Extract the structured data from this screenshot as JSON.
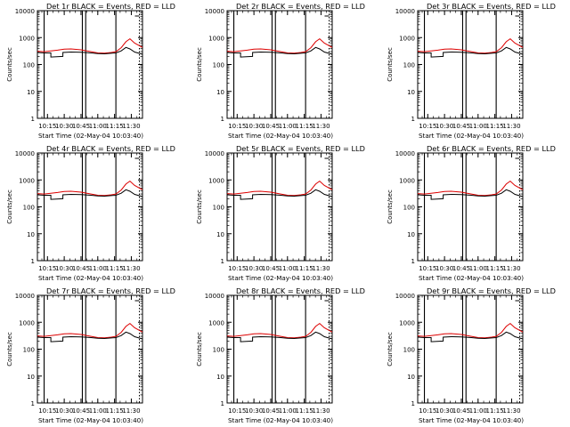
{
  "chart_data": [
    {
      "type": "line",
      "title": "Det 1r BLACK = Events, RED = LLD",
      "ylabel": "Counts/sec",
      "xlabel": "Start Time (02-May-04 10:03:40)"
    },
    {
      "type": "line",
      "title": "Det 2r BLACK = Events, RED = LLD",
      "ylabel": "Counts/sec",
      "xlabel": "Start Time (02-May-04 10:03:40)"
    },
    {
      "type": "line",
      "title": "Det 3r BLACK = Events, RED = LLD",
      "ylabel": "Counts/sec",
      "xlabel": "Start Time (02-May-04 10:03:40)"
    },
    {
      "type": "line",
      "title": "Det 4r BLACK = Events, RED = LLD",
      "ylabel": "Counts/sec",
      "xlabel": "Start Time (02-May-04 10:03:40)"
    },
    {
      "type": "line",
      "title": "Det 5r BLACK = Events, RED = LLD",
      "ylabel": "Counts/sec",
      "xlabel": "Start Time (02-May-04 10:03:40)"
    },
    {
      "type": "line",
      "title": "Det 6r BLACK = Events, RED = LLD",
      "ylabel": "Counts/sec",
      "xlabel": "Start Time (02-May-04 10:03:40)"
    },
    {
      "type": "line",
      "title": "Det 7r BLACK = Events, RED = LLD",
      "ylabel": "Counts/sec",
      "xlabel": "Start Time (02-May-04 10:03:40)"
    },
    {
      "type": "line",
      "title": "Det 8r BLACK = Events, RED = LLD",
      "ylabel": "Counts/sec",
      "xlabel": "Start Time (02-May-04 10:03:40)"
    },
    {
      "type": "line",
      "title": "Det 9r BLACK = Events, RED = LLD",
      "ylabel": "Counts/sec",
      "xlabel": "Start Time (02-May-04 10:03:40)"
    }
  ],
  "shared": {
    "x_range_minutes": [
      10.1,
      11.6667
    ],
    "x_unit": "time after 10:00 in hours",
    "x_ticks": [
      {
        "value": 10.25,
        "label": "10:15"
      },
      {
        "value": 10.5,
        "label": "10:30"
      },
      {
        "value": 10.75,
        "label": "10:45"
      },
      {
        "value": 11.0,
        "label": "11:00"
      },
      {
        "value": 11.25,
        "label": "11:15"
      },
      {
        "value": 11.5,
        "label": "11:30"
      }
    ],
    "y_scale": "log",
    "y_range": [
      1,
      10000
    ],
    "y_ticks": [
      {
        "value": 1,
        "label": "1"
      },
      {
        "value": 10,
        "label": "10"
      },
      {
        "value": 100,
        "label": "100"
      },
      {
        "value": 1000,
        "label": "1000"
      },
      {
        "value": 10000,
        "label": "10000"
      }
    ],
    "series": [
      {
        "name": "Events",
        "color": "#000000",
        "x": [
          10.1,
          10.2,
          10.3,
          10.3,
          10.48,
          10.48,
          10.6,
          10.75,
          10.9,
          11.0,
          11.1,
          11.2,
          11.27,
          11.35,
          11.42,
          11.48,
          11.55,
          11.6667
        ],
        "y": [
          280,
          270,
          270,
          190,
          200,
          280,
          290,
          285,
          270,
          255,
          250,
          260,
          270,
          320,
          430,
          380,
          290,
          240
        ]
      },
      {
        "name": "LLD",
        "color": "#dd0000",
        "x": [
          10.1,
          10.2,
          10.3,
          10.4,
          10.5,
          10.6,
          10.75,
          10.9,
          11.0,
          11.1,
          11.2,
          11.27,
          11.35,
          11.42,
          11.48,
          11.55,
          11.6667
        ],
        "y": [
          310,
          300,
          320,
          340,
          370,
          380,
          350,
          300,
          270,
          265,
          280,
          300,
          420,
          700,
          900,
          620,
          430
        ]
      }
    ],
    "vertical_markers_hours": [
      10.2,
      10.77,
      10.82,
      11.27
    ],
    "right_edge_markers_hours": [
      11.62
    ]
  }
}
